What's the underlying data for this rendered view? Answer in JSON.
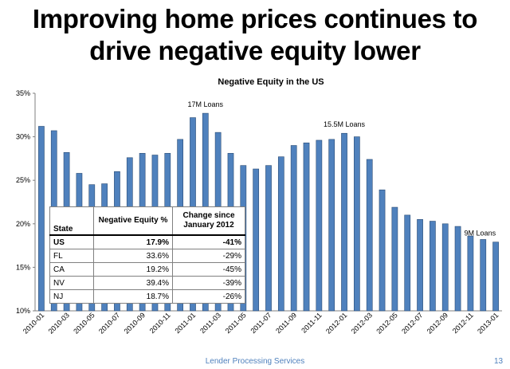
{
  "slide": {
    "headline_line1": "Improving home prices continues to",
    "headline_line2": "drive negative equity lower",
    "footer_org": "Lender Processing Services",
    "page_number": "13"
  },
  "colors": {
    "bar": "#4f81bd",
    "bar_edge": "#2c4d75",
    "footer_text": "#4f81bd"
  },
  "chart_data": {
    "type": "bar",
    "title": "Negative Equity in the US",
    "categories": [
      "2010-01",
      "2010-02",
      "2010-03",
      "2010-04",
      "2010-05",
      "2010-06",
      "2010-07",
      "2010-08",
      "2010-09",
      "2010-10",
      "2010-11",
      "2010-12",
      "2011-01",
      "2011-02",
      "2011-03",
      "2011-04",
      "2011-05",
      "2011-06",
      "2011-07",
      "2011-08",
      "2011-09",
      "2011-10",
      "2011-11",
      "2011-12",
      "2012-01",
      "2012-02",
      "2012-03",
      "2012-04",
      "2012-05",
      "2012-06",
      "2012-07",
      "2012-08",
      "2012-09",
      "2012-10",
      "2012-11",
      "2012-12",
      "2013-01"
    ],
    "x_tick_labels": [
      "2010-01",
      "2010-03",
      "2010-05",
      "2010-07",
      "2010-09",
      "2010-11",
      "2011-01",
      "2011-03",
      "2011-05",
      "2011-07",
      "2011-09",
      "2011-11",
      "2012-01",
      "2012-03",
      "2012-05",
      "2012-07",
      "2012-09",
      "2012-11",
      "2013-01"
    ],
    "values": [
      31.2,
      30.7,
      28.2,
      25.8,
      24.5,
      24.6,
      26.0,
      27.6,
      28.1,
      27.9,
      28.1,
      29.7,
      32.2,
      32.7,
      30.5,
      28.1,
      26.7,
      26.3,
      26.7,
      27.7,
      29.0,
      29.3,
      29.6,
      29.7,
      30.4,
      30.0,
      27.4,
      23.9,
      21.9,
      21.0,
      20.5,
      20.3,
      20.0,
      19.7,
      18.6,
      18.2,
      17.9
    ],
    "y_tick_labels": [
      "10%",
      "15%",
      "20%",
      "25%",
      "30%",
      "35%"
    ],
    "ylim": [
      10,
      35
    ],
    "xlabel": "",
    "ylabel": "",
    "annotations": [
      {
        "text": "17M Loans",
        "category": "2011-02"
      },
      {
        "text": "15.5M Loans",
        "category": "2012-01"
      },
      {
        "text": "9M Loans",
        "category": "2013-01"
      }
    ]
  },
  "table": {
    "headers": [
      "State",
      "Negative Equity %",
      "Change since January 2012"
    ],
    "rows": [
      {
        "state": "US",
        "equity": "17.9%",
        "change": "-41%",
        "bold": true
      },
      {
        "state": "FL",
        "equity": "33.6%",
        "change": "-29%"
      },
      {
        "state": "CA",
        "equity": "19.2%",
        "change": "-45%"
      },
      {
        "state": "NV",
        "equity": "39.4%",
        "change": "-39%"
      },
      {
        "state": "NJ",
        "equity": "18.7%",
        "change": "-26%"
      }
    ]
  }
}
